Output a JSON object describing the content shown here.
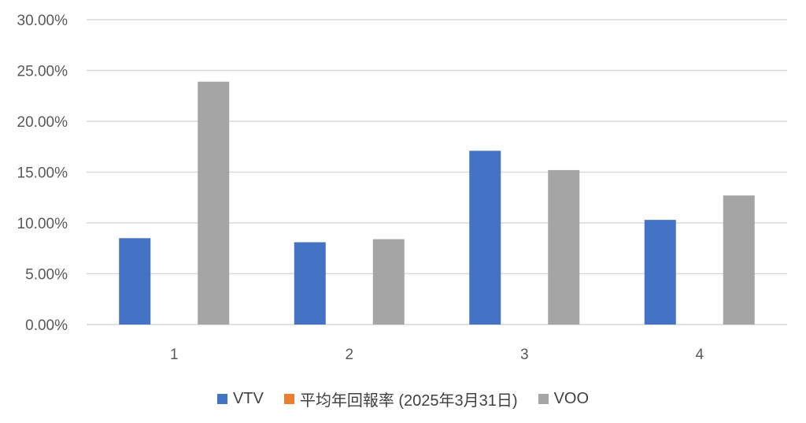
{
  "chart_data": {
    "type": "bar",
    "categories": [
      "1",
      "2",
      "3",
      "4"
    ],
    "series": [
      {
        "name": "VTV",
        "color": "#4472C4",
        "values": [
          8.5,
          8.1,
          17.1,
          10.3
        ]
      },
      {
        "name": "平均年回報率 (2025年3月31日)",
        "color": "#ED7D31",
        "values": [
          0,
          0,
          0,
          0
        ]
      },
      {
        "name": "VOO",
        "color": "#A5A5A5",
        "values": [
          23.9,
          8.4,
          15.2,
          12.7
        ]
      }
    ],
    "y_ticks": [
      "0.00%",
      "5.00%",
      "10.00%",
      "15.00%",
      "20.00%",
      "25.00%",
      "30.00%"
    ],
    "ylim": [
      0,
      30
    ],
    "y_unit": "%",
    "grid": true,
    "legend_position": "bottom"
  }
}
